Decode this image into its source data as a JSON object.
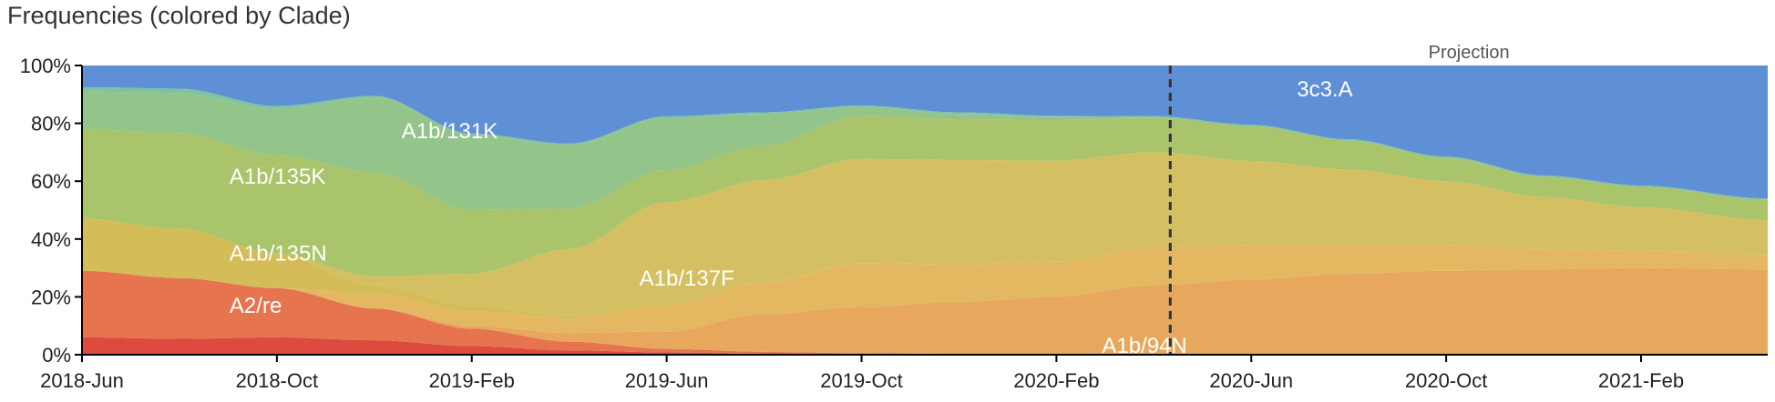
{
  "chart_data": {
    "title": "Frequencies (colored by Clade)",
    "type": "area",
    "stacked": true,
    "x": [
      "2018-Jun",
      "2018-Aug",
      "2018-Oct",
      "2018-Dec",
      "2019-Feb",
      "2019-Apr",
      "2019-Jun",
      "2019-Aug",
      "2019-Oct",
      "2019-Dec",
      "2020-Feb",
      "2020-Apr",
      "2020-Jun",
      "2020-Aug",
      "2020-Oct",
      "2020-Dec",
      "2021-Feb",
      "2021-Apr"
    ],
    "x_ticks": [
      "2018-Jun",
      "2018-Oct",
      "2019-Feb",
      "2019-Jun",
      "2019-Oct",
      "2020-Feb",
      "2020-Jun",
      "2020-Oct",
      "2021-Feb"
    ],
    "y_ticks": [
      "0%",
      "20%",
      "40%",
      "60%",
      "80%",
      "100%"
    ],
    "ylim": [
      0,
      100
    ],
    "projection_label": "Projection",
    "projection_start": "2020-Apr",
    "series": [
      {
        "name": "red",
        "label": "",
        "color": "#dc4b3e",
        "values": [
          6,
          5.5,
          6,
          5,
          3,
          1.5,
          0.8,
          0.3,
          0.2,
          0.1,
          0,
          0,
          0,
          0,
          0,
          0,
          0,
          0
        ]
      },
      {
        "name": "A2/re",
        "label": "A2/re",
        "color": "#e5744f",
        "values": [
          23,
          21,
          17,
          11,
          6,
          3,
          1.2,
          0.7,
          0.3,
          0.2,
          0.1,
          0,
          0,
          0,
          0,
          0,
          0,
          0
        ]
      },
      {
        "name": "A1b/94N",
        "label": "A1b/94N",
        "color": "#e7a85d",
        "values": [
          0,
          0,
          0,
          0,
          1,
          3,
          6,
          13,
          16,
          18,
          20,
          24,
          26,
          28,
          29,
          29.5,
          30,
          29.5
        ]
      },
      {
        "name": "orange2",
        "label": "",
        "color": "#e4b860",
        "values": [
          0,
          0,
          0,
          5,
          5,
          5,
          9,
          11,
          15,
          13,
          12,
          13,
          12,
          10,
          9,
          7,
          6,
          5
        ]
      },
      {
        "name": "A1b/135N",
        "label": "A1b/135N",
        "color": "#d4bc58",
        "values": [
          18,
          17,
          12,
          3,
          2,
          1,
          0.5,
          0.3,
          0.2,
          0,
          0,
          0,
          0,
          0,
          0,
          0,
          0,
          0
        ]
      },
      {
        "name": "A1b/137F",
        "label": "A1b/137F",
        "color": "#d4c062",
        "values": [
          0,
          0,
          0,
          3,
          11,
          23,
          35,
          35,
          36,
          36,
          35,
          33,
          29,
          26,
          22,
          18,
          15,
          12
        ]
      },
      {
        "name": "A1b/135K",
        "label": "A1b/135K",
        "color": "#a9c46a",
        "values": [
          31,
          33,
          34,
          36,
          22,
          14,
          11,
          12,
          15,
          14,
          14,
          12,
          12,
          10,
          8,
          7,
          7,
          7
        ]
      },
      {
        "name": "A1b/131K",
        "label": "A1b/131K",
        "color": "#93c48a",
        "values": [
          13,
          14,
          16,
          26,
          26,
          22,
          18,
          11,
          3,
          2,
          1,
          0,
          0,
          0,
          0,
          0,
          0,
          0
        ]
      },
      {
        "name": "teal",
        "label": "",
        "color": "#7fc2a2",
        "values": [
          1.5,
          1.5,
          1,
          0.5,
          0.5,
          0.5,
          0.5,
          0.5,
          0.5,
          0.5,
          0.5,
          0.5,
          0.5,
          0.5,
          0.5,
          0.5,
          0.5,
          0.5
        ]
      },
      {
        "name": "3c3.A",
        "label": "3c3.A",
        "color": "#5f8fd4",
        "values": [
          7.5,
          8,
          14,
          10.5,
          23.5,
          27,
          17.5,
          16.2,
          13.8,
          16.2,
          17.4,
          17.5,
          20.5,
          25.5,
          31.5,
          38,
          41.5,
          46
        ]
      }
    ]
  }
}
